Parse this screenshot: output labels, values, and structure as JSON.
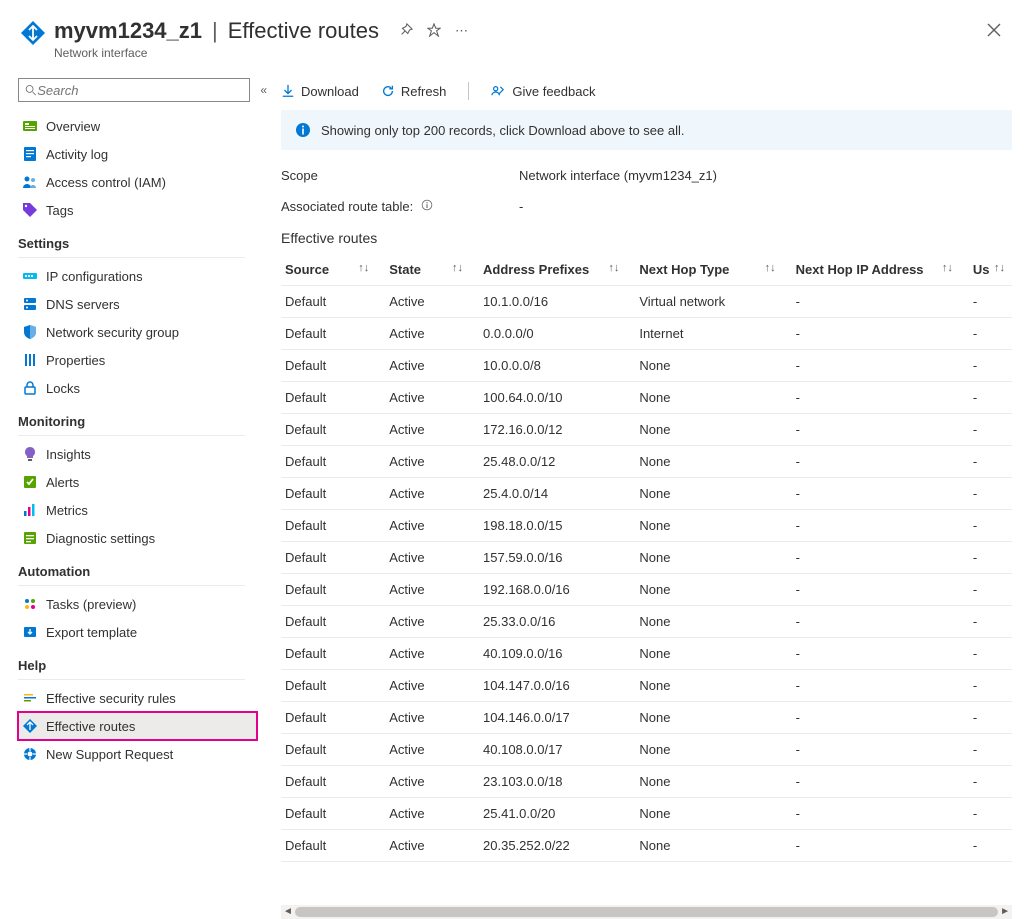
{
  "header": {
    "resource_name": "myvm1234_z1",
    "page_title": "Effective routes",
    "subtitle": "Network interface"
  },
  "sidebar": {
    "search_placeholder": "Search",
    "top": [
      {
        "label": "Overview",
        "icon": "overview"
      },
      {
        "label": "Activity log",
        "icon": "activity"
      },
      {
        "label": "Access control (IAM)",
        "icon": "iam"
      },
      {
        "label": "Tags",
        "icon": "tags"
      }
    ],
    "sections": [
      {
        "title": "Settings",
        "items": [
          {
            "label": "IP configurations",
            "icon": "ipconfig"
          },
          {
            "label": "DNS servers",
            "icon": "dns"
          },
          {
            "label": "Network security group",
            "icon": "nsg"
          },
          {
            "label": "Properties",
            "icon": "properties"
          },
          {
            "label": "Locks",
            "icon": "locks"
          }
        ]
      },
      {
        "title": "Monitoring",
        "items": [
          {
            "label": "Insights",
            "icon": "insights"
          },
          {
            "label": "Alerts",
            "icon": "alerts"
          },
          {
            "label": "Metrics",
            "icon": "metrics"
          },
          {
            "label": "Diagnostic settings",
            "icon": "diag"
          }
        ]
      },
      {
        "title": "Automation",
        "items": [
          {
            "label": "Tasks (preview)",
            "icon": "tasks"
          },
          {
            "label": "Export template",
            "icon": "export"
          }
        ]
      },
      {
        "title": "Help",
        "items": [
          {
            "label": "Effective security rules",
            "icon": "secrules"
          },
          {
            "label": "Effective routes",
            "icon": "routes",
            "selected": true,
            "highlighted": true
          },
          {
            "label": "New Support Request",
            "icon": "support"
          }
        ]
      }
    ]
  },
  "toolbar": {
    "download": "Download",
    "refresh": "Refresh",
    "feedback": "Give feedback"
  },
  "info_bar": "Showing only top 200 records, click Download above to see all.",
  "scope": {
    "label": "Scope",
    "value": "Network interface (myvm1234_z1)"
  },
  "assoc": {
    "label": "Associated route table:",
    "value": "-"
  },
  "table": {
    "title": "Effective routes",
    "columns": [
      "Source",
      "State",
      "Address Prefixes",
      "Next Hop Type",
      "Next Hop IP Address",
      "Us"
    ],
    "rows": [
      {
        "source": "Default",
        "state": "Active",
        "prefix": "10.1.0.0/16",
        "hoptype": "Virtual network",
        "hopip": "-",
        "user": "-"
      },
      {
        "source": "Default",
        "state": "Active",
        "prefix": "0.0.0.0/0",
        "hoptype": "Internet",
        "hopip": "-",
        "user": "-"
      },
      {
        "source": "Default",
        "state": "Active",
        "prefix": "10.0.0.0/8",
        "hoptype": "None",
        "hopip": "-",
        "user": "-"
      },
      {
        "source": "Default",
        "state": "Active",
        "prefix": "100.64.0.0/10",
        "hoptype": "None",
        "hopip": "-",
        "user": "-"
      },
      {
        "source": "Default",
        "state": "Active",
        "prefix": "172.16.0.0/12",
        "hoptype": "None",
        "hopip": "-",
        "user": "-"
      },
      {
        "source": "Default",
        "state": "Active",
        "prefix": "25.48.0.0/12",
        "hoptype": "None",
        "hopip": "-",
        "user": "-"
      },
      {
        "source": "Default",
        "state": "Active",
        "prefix": "25.4.0.0/14",
        "hoptype": "None",
        "hopip": "-",
        "user": "-"
      },
      {
        "source": "Default",
        "state": "Active",
        "prefix": "198.18.0.0/15",
        "hoptype": "None",
        "hopip": "-",
        "user": "-"
      },
      {
        "source": "Default",
        "state": "Active",
        "prefix": "157.59.0.0/16",
        "hoptype": "None",
        "hopip": "-",
        "user": "-"
      },
      {
        "source": "Default",
        "state": "Active",
        "prefix": "192.168.0.0/16",
        "hoptype": "None",
        "hopip": "-",
        "user": "-"
      },
      {
        "source": "Default",
        "state": "Active",
        "prefix": "25.33.0.0/16",
        "hoptype": "None",
        "hopip": "-",
        "user": "-"
      },
      {
        "source": "Default",
        "state": "Active",
        "prefix": "40.109.0.0/16",
        "hoptype": "None",
        "hopip": "-",
        "user": "-"
      },
      {
        "source": "Default",
        "state": "Active",
        "prefix": "104.147.0.0/16",
        "hoptype": "None",
        "hopip": "-",
        "user": "-"
      },
      {
        "source": "Default",
        "state": "Active",
        "prefix": "104.146.0.0/17",
        "hoptype": "None",
        "hopip": "-",
        "user": "-"
      },
      {
        "source": "Default",
        "state": "Active",
        "prefix": "40.108.0.0/17",
        "hoptype": "None",
        "hopip": "-",
        "user": "-"
      },
      {
        "source": "Default",
        "state": "Active",
        "prefix": "23.103.0.0/18",
        "hoptype": "None",
        "hopip": "-",
        "user": "-"
      },
      {
        "source": "Default",
        "state": "Active",
        "prefix": "25.41.0.0/20",
        "hoptype": "None",
        "hopip": "-",
        "user": "-"
      },
      {
        "source": "Default",
        "state": "Active",
        "prefix": "20.35.252.0/22",
        "hoptype": "None",
        "hopip": "-",
        "user": "-"
      }
    ]
  },
  "colors": {
    "accent": "#0078d4",
    "highlight": "#e3008c",
    "info_bg": "#eff6fc",
    "border": "#edebe9",
    "text": "#323130",
    "text_muted": "#605e5c"
  }
}
